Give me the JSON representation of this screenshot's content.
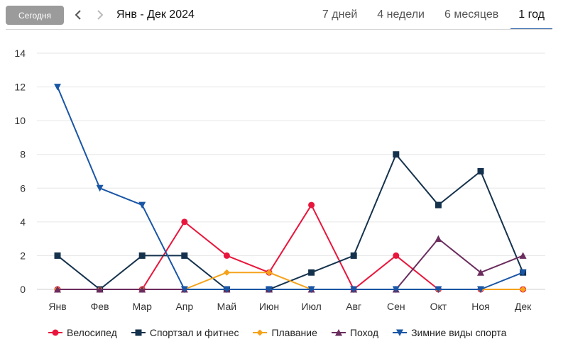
{
  "toolbar": {
    "today_label": "Сегодня",
    "range_title": "Янв - Дек 2024",
    "tabs": [
      {
        "label": "7 дней",
        "active": false
      },
      {
        "label": "4 недели",
        "active": false
      },
      {
        "label": "6 месяцев",
        "active": false
      },
      {
        "label": "1 год",
        "active": true
      }
    ]
  },
  "chart_data": {
    "type": "line",
    "categories": [
      "Янв",
      "Фев",
      "Мар",
      "Апр",
      "Май",
      "Июн",
      "Июл",
      "Авг",
      "Сен",
      "Окт",
      "Ноя",
      "Дек"
    ],
    "ylim": [
      0,
      14
    ],
    "yticks": [
      "0",
      "2",
      "4",
      "6",
      "8",
      "10",
      "12",
      "14"
    ],
    "grid": true,
    "legend_position": "bottom",
    "series": [
      {
        "name": "Велосипед",
        "color": "#e8163c",
        "marker": "circle",
        "values": [
          0,
          0,
          0,
          4,
          2,
          1,
          5,
          0,
          2,
          0,
          0,
          0
        ]
      },
      {
        "name": "Спортзал и фитнес",
        "color": "#15324d",
        "marker": "square",
        "values": [
          2,
          0,
          2,
          2,
          0,
          0,
          1,
          2,
          8,
          5,
          7,
          1
        ]
      },
      {
        "name": "Плавание",
        "color": "#f5a21a",
        "marker": "diamond",
        "values": [
          0,
          0,
          0,
          0,
          1,
          1,
          0,
          0,
          0,
          0,
          0,
          0
        ]
      },
      {
        "name": "Поход",
        "color": "#6b2d5e",
        "marker": "triangle-up",
        "values": [
          0,
          0,
          0,
          0,
          0,
          0,
          0,
          0,
          0,
          3,
          1,
          2
        ]
      },
      {
        "name": "Зимние виды спорта",
        "color": "#1a56a6",
        "marker": "triangle-down",
        "values": [
          12,
          6,
          5,
          0,
          0,
          0,
          0,
          0,
          0,
          0,
          0,
          1
        ]
      }
    ]
  }
}
